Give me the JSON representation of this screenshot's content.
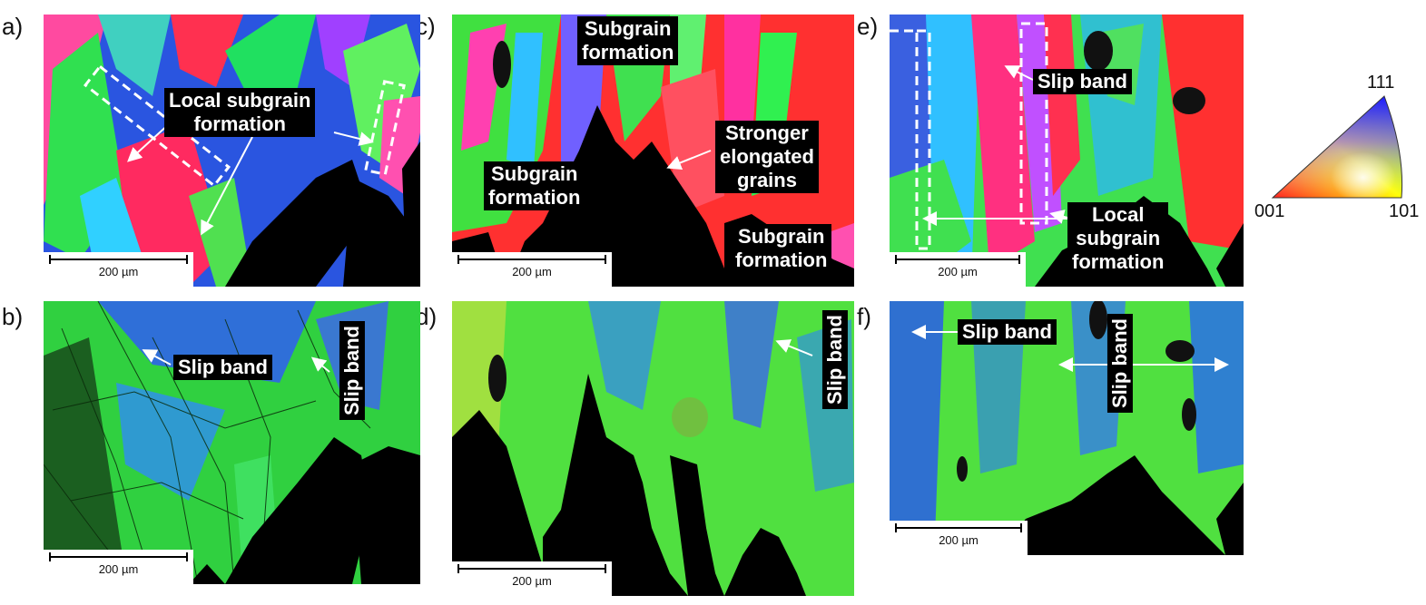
{
  "panels": {
    "a": {
      "letter": "a)",
      "scale": "200 µm",
      "labels": {
        "subgrain": "Local subgrain\nformation"
      }
    },
    "b": {
      "letter": "b)",
      "scale": "200 µm",
      "labels": {
        "slip1": "Slip band",
        "slip2": "Slip band"
      }
    },
    "c": {
      "letter": "c)",
      "scale": "200 µm",
      "labels": {
        "subgrain_top": "Subgrain\nformation",
        "subgrain_left": "Subgrain\nformation",
        "elongated": "Stronger\nelongated\ngrains",
        "subgrain_bottom": "Subgrain\nformation"
      }
    },
    "d": {
      "letter": "d)",
      "scale": "200 µm",
      "labels": {
        "slip": "Slip band"
      }
    },
    "e": {
      "letter": "e)",
      "scale": "200 µm",
      "labels": {
        "slip": "Slip band",
        "subgrain": "Local\nsubgrain\nformation"
      }
    },
    "f": {
      "letter": "f)",
      "scale": "200 µm",
      "labels": {
        "slip1": "Slip band",
        "slip2": "Slip band"
      }
    }
  },
  "ipf_legend": {
    "top": "111",
    "left": "001",
    "right": "101"
  }
}
